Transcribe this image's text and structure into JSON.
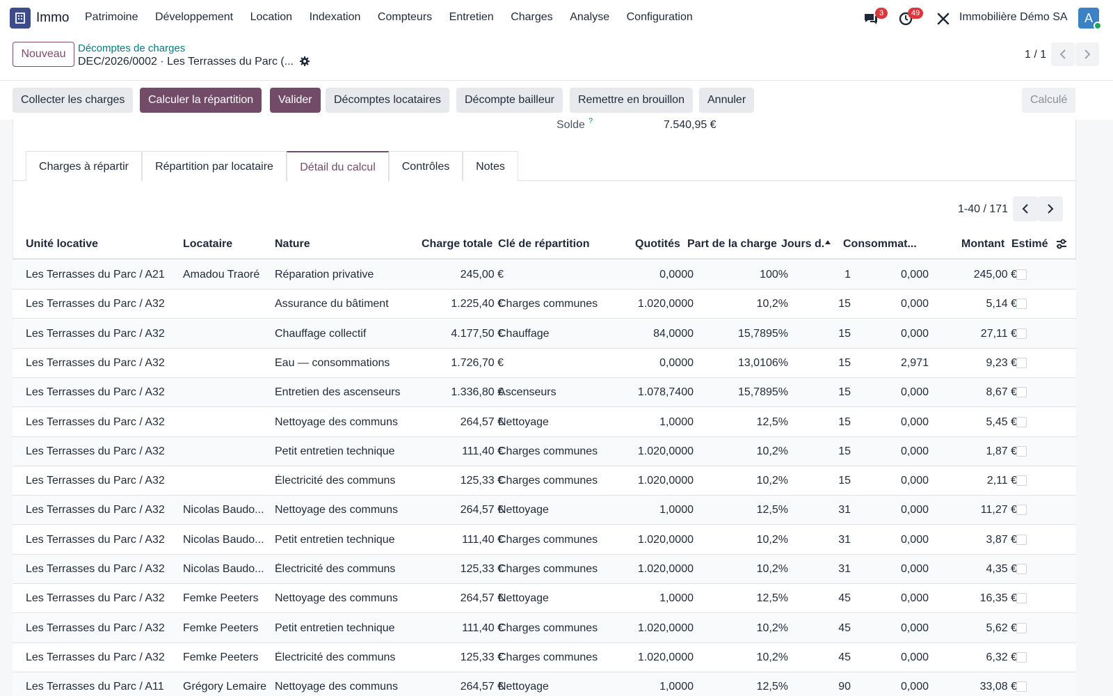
{
  "navbar": {
    "app_name": "Immo",
    "menu": [
      "Patrimoine",
      "Développement",
      "Location",
      "Indexation",
      "Compteurs",
      "Entretien",
      "Charges",
      "Analyse",
      "Configuration"
    ],
    "messages_badge": "3",
    "activities_badge": "49",
    "company": "Immobilière Démo SA",
    "avatar_letter": "A"
  },
  "control_panel": {
    "new_label": "Nouveau",
    "breadcrumb_parent": "Décomptes de charges",
    "breadcrumb_current": "DEC/2026/0002 · Les Terrasses du Parc (...",
    "pager": "1 / 1"
  },
  "actions": [
    "Collecter les charges",
    "Calculer la répartition",
    "Valider",
    "Décomptes locataires",
    "Décompte bailleur",
    "Remettre en brouillon",
    "Annuler"
  ],
  "status": "Calculé",
  "summary": {
    "solde_label": "Solde",
    "solde_help": "?",
    "solde_value": "7.540,95 €"
  },
  "tabs": [
    "Charges à répartir",
    "Répartition par locataire",
    "Détail du calcul",
    "Contrôles",
    "Notes"
  ],
  "list": {
    "pager": "1-40 / 171",
    "columns": [
      "Unité locative",
      "Locataire",
      "Nature",
      "Charge totale",
      "Clé de répartition",
      "Quotités",
      "Part de la charge",
      "Jours d.",
      "Consommat...",
      "Montant",
      "Estimé"
    ],
    "rows": [
      [
        "Les Terrasses du Parc / A21",
        "Amadou Traoré",
        "Réparation privative",
        "245,00 €",
        "",
        "0,0000",
        "100%",
        "1",
        "0,000",
        "245,00 €"
      ],
      [
        "Les Terrasses du Parc / A32",
        "",
        "Assurance du bâtiment",
        "1.225,40 €",
        "Charges communes",
        "1.020,0000",
        "10,2%",
        "15",
        "0,000",
        "5,14 €"
      ],
      [
        "Les Terrasses du Parc / A32",
        "",
        "Chauffage collectif",
        "4.177,50 €",
        "Chauffage",
        "84,0000",
        "15,7895%",
        "15",
        "0,000",
        "27,11 €"
      ],
      [
        "Les Terrasses du Parc / A32",
        "",
        "Eau — consommations",
        "1.726,70 €",
        "",
        "0,0000",
        "13,0106%",
        "15",
        "2,971",
        "9,23 €"
      ],
      [
        "Les Terrasses du Parc / A32",
        "",
        "Entretien des ascenseurs",
        "1.336,80 €",
        "Ascenseurs",
        "1.078,7400",
        "15,7895%",
        "15",
        "0,000",
        "8,67 €"
      ],
      [
        "Les Terrasses du Parc / A32",
        "",
        "Nettoyage des communs",
        "264,57 €",
        "Nettoyage",
        "1,0000",
        "12,5%",
        "15",
        "0,000",
        "5,45 €"
      ],
      [
        "Les Terrasses du Parc / A32",
        "",
        "Petit entretien technique",
        "111,40 €",
        "Charges communes",
        "1.020,0000",
        "10,2%",
        "15",
        "0,000",
        "1,87 €"
      ],
      [
        "Les Terrasses du Parc / A32",
        "",
        "Électricité des communs",
        "125,33 €",
        "Charges communes",
        "1.020,0000",
        "10,2%",
        "15",
        "0,000",
        "2,11 €"
      ],
      [
        "Les Terrasses du Parc / A32",
        "Nicolas Baudo...",
        "Nettoyage des communs",
        "264,57 €",
        "Nettoyage",
        "1,0000",
        "12,5%",
        "31",
        "0,000",
        "11,27 €"
      ],
      [
        "Les Terrasses du Parc / A32",
        "Nicolas Baudo...",
        "Petit entretien technique",
        "111,40 €",
        "Charges communes",
        "1.020,0000",
        "10,2%",
        "31",
        "0,000",
        "3,87 €"
      ],
      [
        "Les Terrasses du Parc / A32",
        "Nicolas Baudo...",
        "Électricité des communs",
        "125,33 €",
        "Charges communes",
        "1.020,0000",
        "10,2%",
        "31",
        "0,000",
        "4,35 €"
      ],
      [
        "Les Terrasses du Parc / A32",
        "Femke Peeters",
        "Nettoyage des communs",
        "264,57 €",
        "Nettoyage",
        "1,0000",
        "12,5%",
        "45",
        "0,000",
        "16,35 €"
      ],
      [
        "Les Terrasses du Parc / A32",
        "Femke Peeters",
        "Petit entretien technique",
        "111,40 €",
        "Charges communes",
        "1.020,0000",
        "10,2%",
        "45",
        "0,000",
        "5,62 €"
      ],
      [
        "Les Terrasses du Parc / A32",
        "Femke Peeters",
        "Électricité des communs",
        "125,33 €",
        "Charges communes",
        "1.020,0000",
        "10,2%",
        "45",
        "0,000",
        "6,32 €"
      ],
      [
        "Les Terrasses du Parc / A11",
        "Grégory Lemaire",
        "Nettoyage des communs",
        "264,57 €",
        "Nettoyage",
        "1,0000",
        "12,5%",
        "90",
        "0,000",
        "33,08 €"
      ]
    ]
  },
  "colors": {
    "primary": "#714b67",
    "link": "#017e84",
    "badge": "#d9383c"
  }
}
